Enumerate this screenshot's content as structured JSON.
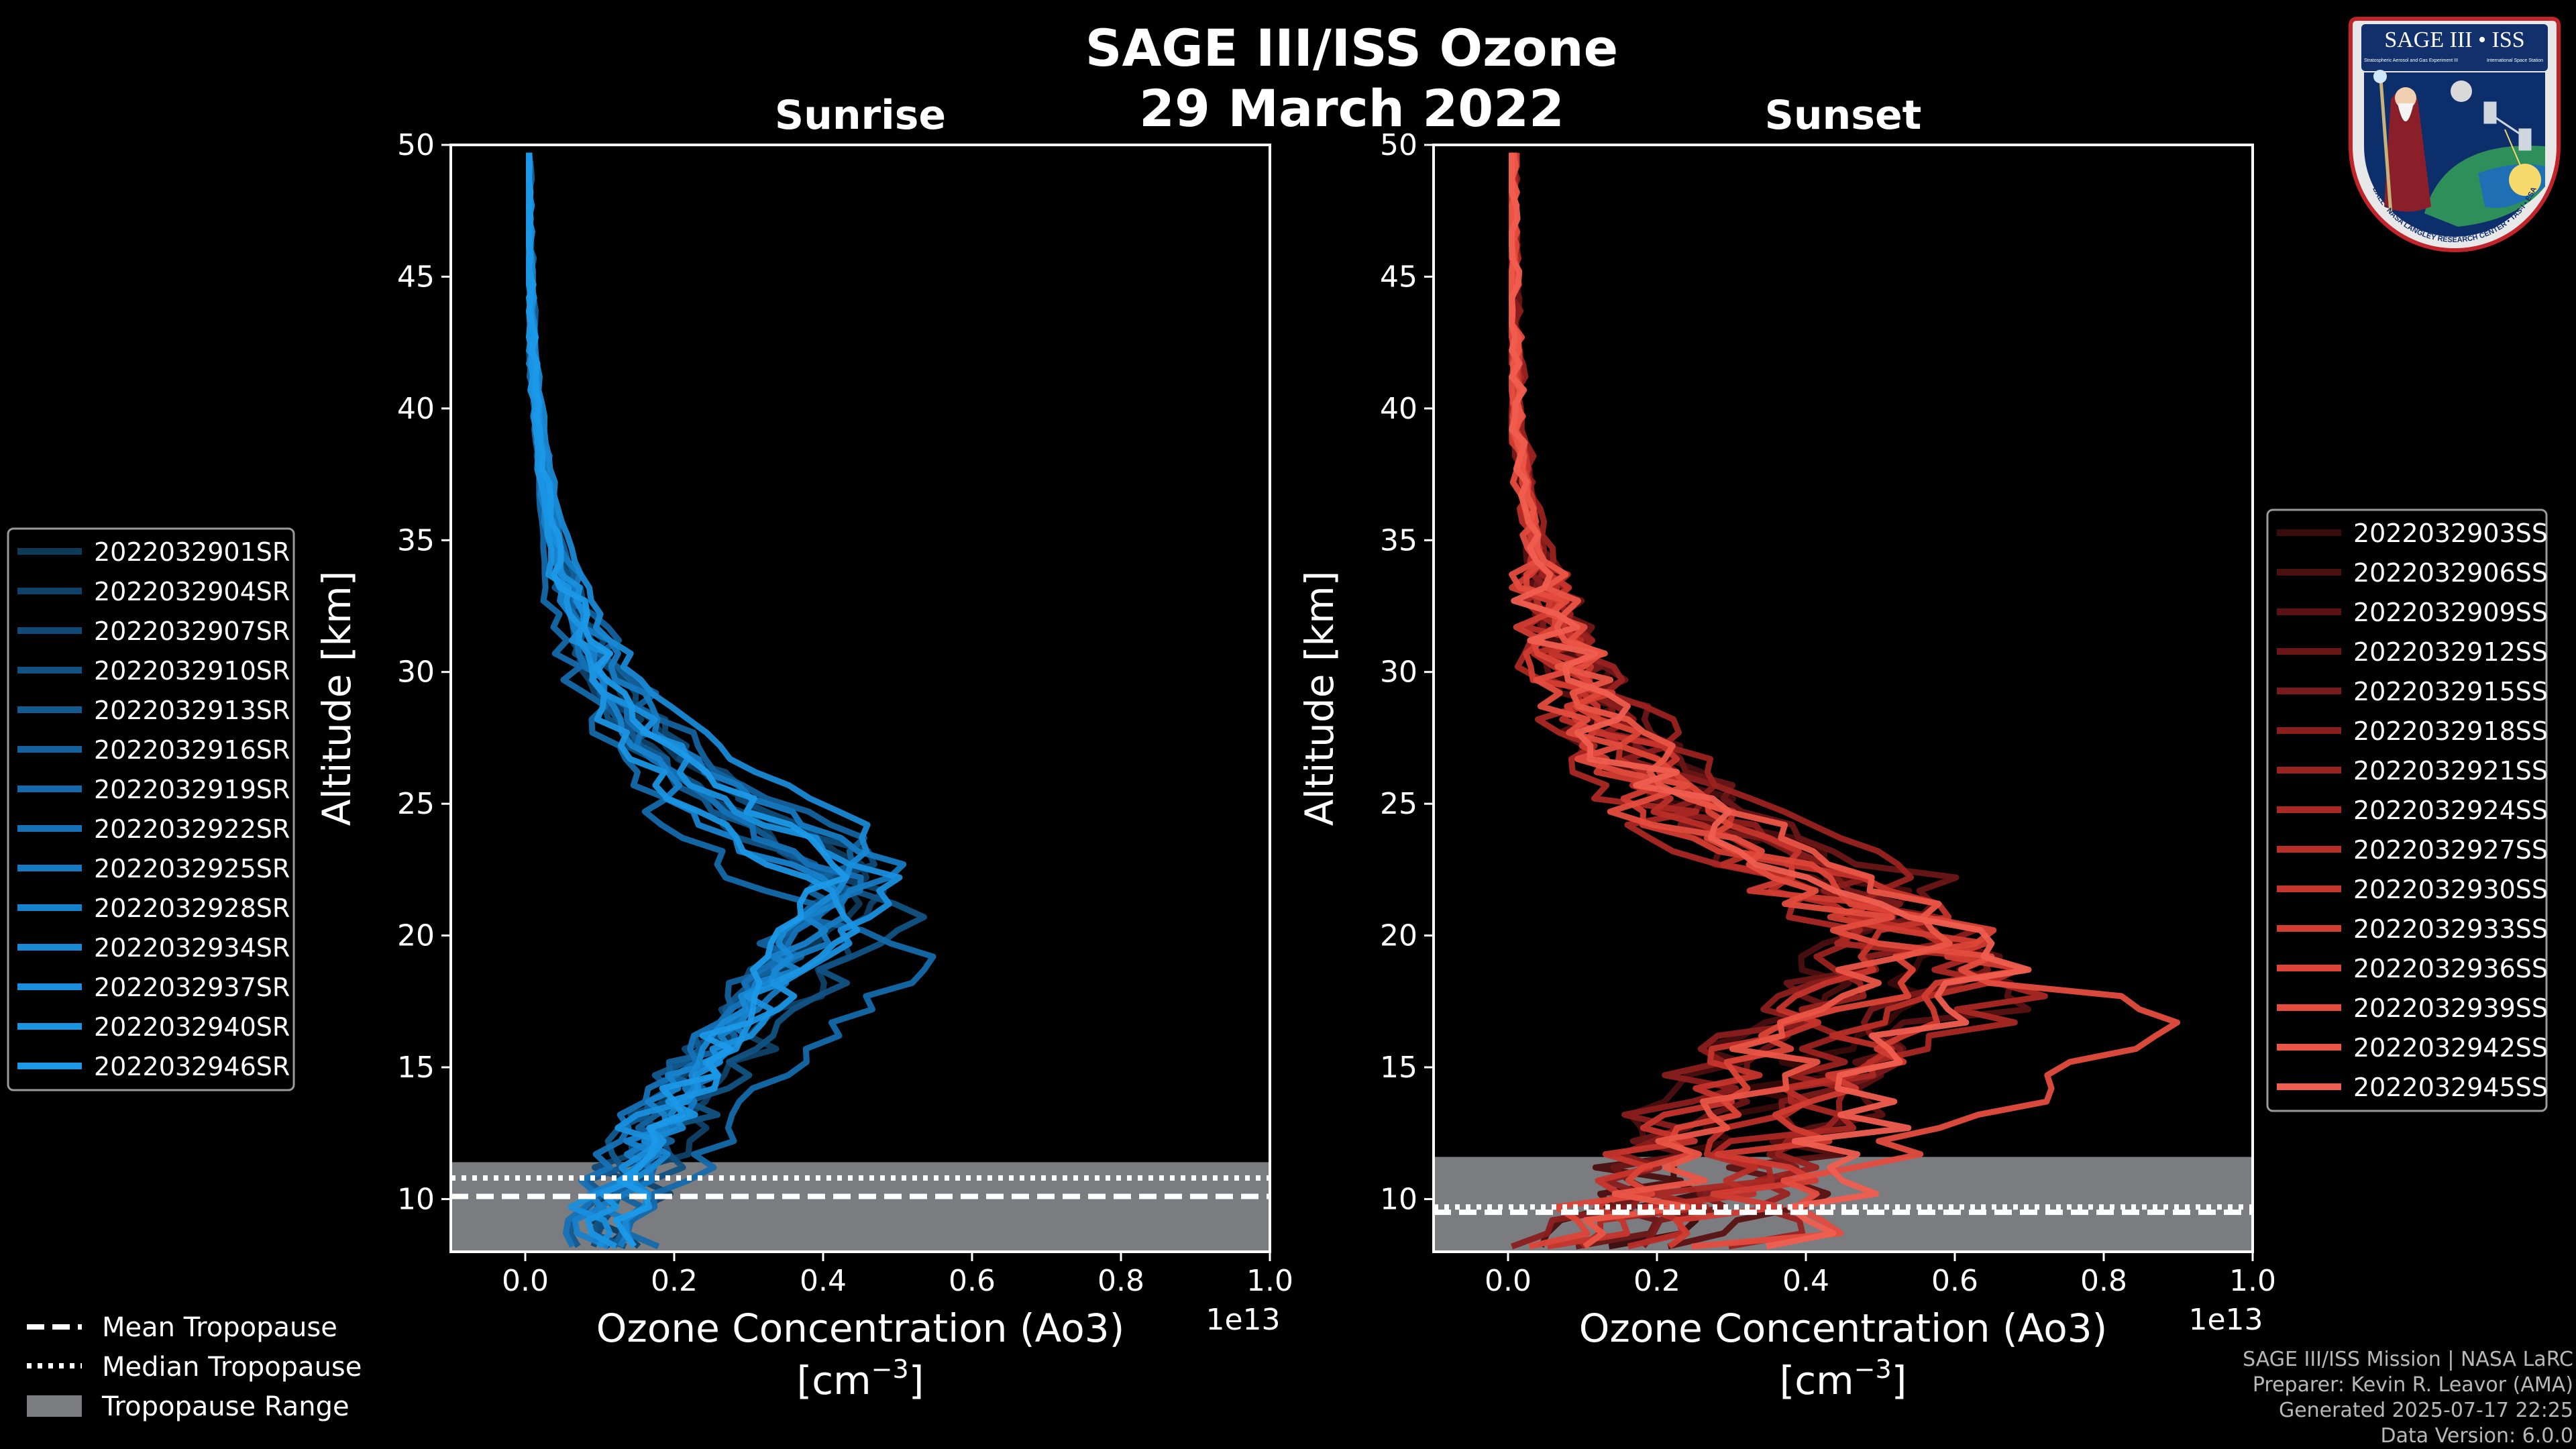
{
  "chart_data": {
    "type": "line",
    "title_line1": "SAGE III/ISS Ozone",
    "title_line2": "29 March 2022",
    "panels": [
      {
        "id": "sunrise",
        "subtitle": "Sunrise",
        "xlabel_line1": "Ozone Concentration (Ao3)",
        "xlabel_line2": "[cm",
        "xlabel_exp": "−3",
        "xlabel_close": "]",
        "ylabel": "Altitude [km]",
        "x_offset_label": "1e13",
        "xlim": [
          -0.1,
          1.0
        ],
        "ylim": [
          8,
          50
        ],
        "xticks": [
          "0.0",
          "0.2",
          "0.4",
          "0.6",
          "0.8",
          "1.0"
        ],
        "yticks": [
          "10",
          "15",
          "20",
          "25",
          "30",
          "35",
          "40",
          "45",
          "50"
        ],
        "tropopause": {
          "mean": 10.1,
          "median": 10.8,
          "range": [
            8.0,
            11.4
          ]
        },
        "legend": [
          "2022032901SR",
          "2022032904SR",
          "2022032907SR",
          "2022032910SR",
          "2022032913SR",
          "2022032916SR",
          "2022032919SR",
          "2022032922SR",
          "2022032925SR",
          "2022032928SR",
          "2022032934SR",
          "2022032937SR",
          "2022032940SR",
          "2022032946SR"
        ],
        "series_colors": [
          "#0e3a5a",
          "#0f4268",
          "#104a76",
          "#115283",
          "#125a90",
          "#13629e",
          "#146aab",
          "#1572b7",
          "#167ac2",
          "#1782cc",
          "#1889d5",
          "#198fdd",
          "#1a95e3",
          "#1b99e8"
        ],
        "peak_conc": [
          0.48,
          0.5,
          0.46,
          0.52,
          0.44,
          0.47,
          0.55,
          0.45,
          0.49,
          0.43,
          0.47,
          0.5,
          0.46,
          0.44
        ],
        "peak_alt": [
          22.5,
          21.5,
          23.0,
          21.0,
          22.0,
          23.5,
          19.0,
          22.0,
          22.8,
          21.5,
          24.0,
          22.0,
          21.0,
          23.0
        ],
        "surface_conc": [
          0.1,
          0.14,
          0.08,
          0.12,
          0.06,
          0.1,
          0.16,
          0.05,
          0.11,
          0.09,
          0.13,
          0.07,
          0.1,
          0.12
        ],
        "noise": [
          0.02,
          0.03,
          0.025,
          0.03,
          0.02,
          0.035,
          0.03,
          0.02,
          0.025,
          0.03,
          0.02,
          0.035,
          0.025,
          0.03
        ]
      },
      {
        "id": "sunset",
        "subtitle": "Sunset",
        "xlabel_line1": "Ozone Concentration (Ao3)",
        "xlabel_line2": "[cm",
        "xlabel_exp": "−3",
        "xlabel_close": "]",
        "ylabel": "Altitude [km]",
        "x_offset_label": "1e13",
        "xlim": [
          -0.1,
          1.0
        ],
        "ylim": [
          8,
          50
        ],
        "xticks": [
          "0.0",
          "0.2",
          "0.4",
          "0.6",
          "0.8",
          "1.0"
        ],
        "yticks": [
          "10",
          "15",
          "20",
          "25",
          "30",
          "35",
          "40",
          "45",
          "50"
        ],
        "tropopause": {
          "mean": 9.5,
          "median": 9.7,
          "range": [
            8.0,
            11.6
          ]
        },
        "legend": [
          "2022032903SS",
          "2022032906SS",
          "2022032909SS",
          "2022032912SS",
          "2022032915SS",
          "2022032918SS",
          "2022032921SS",
          "2022032924SS",
          "2022032927SS",
          "2022032930SS",
          "2022032933SS",
          "2022032936SS",
          "2022032939SS",
          "2022032942SS",
          "2022032945SS"
        ],
        "series_colors": [
          "#3a0b0b",
          "#4a0f0f",
          "#5a1212",
          "#6a1616",
          "#7a1a1a",
          "#8a1e1c",
          "#9a221f",
          "#aa2823",
          "#b92e27",
          "#c6352c",
          "#d23c31",
          "#dc4437",
          "#e44c3e",
          "#eb5546",
          "#f05e4f"
        ],
        "peak_conc": [
          0.62,
          0.55,
          0.7,
          0.58,
          0.66,
          0.6,
          0.52,
          0.72,
          0.64,
          0.57,
          0.68,
          0.63,
          0.9,
          0.6,
          0.66
        ],
        "peak_alt": [
          20.0,
          21.5,
          18.5,
          22.0,
          19.5,
          20.5,
          23.0,
          18.0,
          19.0,
          21.0,
          18.8,
          20.0,
          17.0,
          21.0,
          19.5
        ],
        "surface_conc": [
          0.2,
          0.12,
          0.3,
          0.15,
          0.25,
          0.05,
          0.35,
          0.18,
          0.22,
          0.1,
          0.28,
          0.08,
          0.32,
          0.15,
          0.4
        ],
        "noise": [
          0.05,
          0.06,
          0.07,
          0.05,
          0.06,
          0.07,
          0.05,
          0.08,
          0.06,
          0.05,
          0.07,
          0.06,
          0.09,
          0.06,
          0.07
        ]
      }
    ],
    "bottom_legend": {
      "mean": "Mean Tropopause",
      "median": "Median Tropopause",
      "range": "Tropopause Range"
    },
    "range_color": "#7a7c80"
  },
  "footer": {
    "line1": "SAGE III/ISS Mission | NASA LaRC",
    "line2": "Preparer: Kevin R. Leavor (AMA)",
    "line3": "Generated 2025-07-17 22:25",
    "line4": "Data Version: 6.0.0"
  },
  "badge": {
    "title": "SAGE III • ISS",
    "subtitle_left": "Stratospheric Aerosol and Gas Experiment III",
    "subtitle_right": "International Space Station",
    "ring_text": "BALL • NASA LANGLEY RESEARCH CENTER • TAS-I • ESA"
  }
}
